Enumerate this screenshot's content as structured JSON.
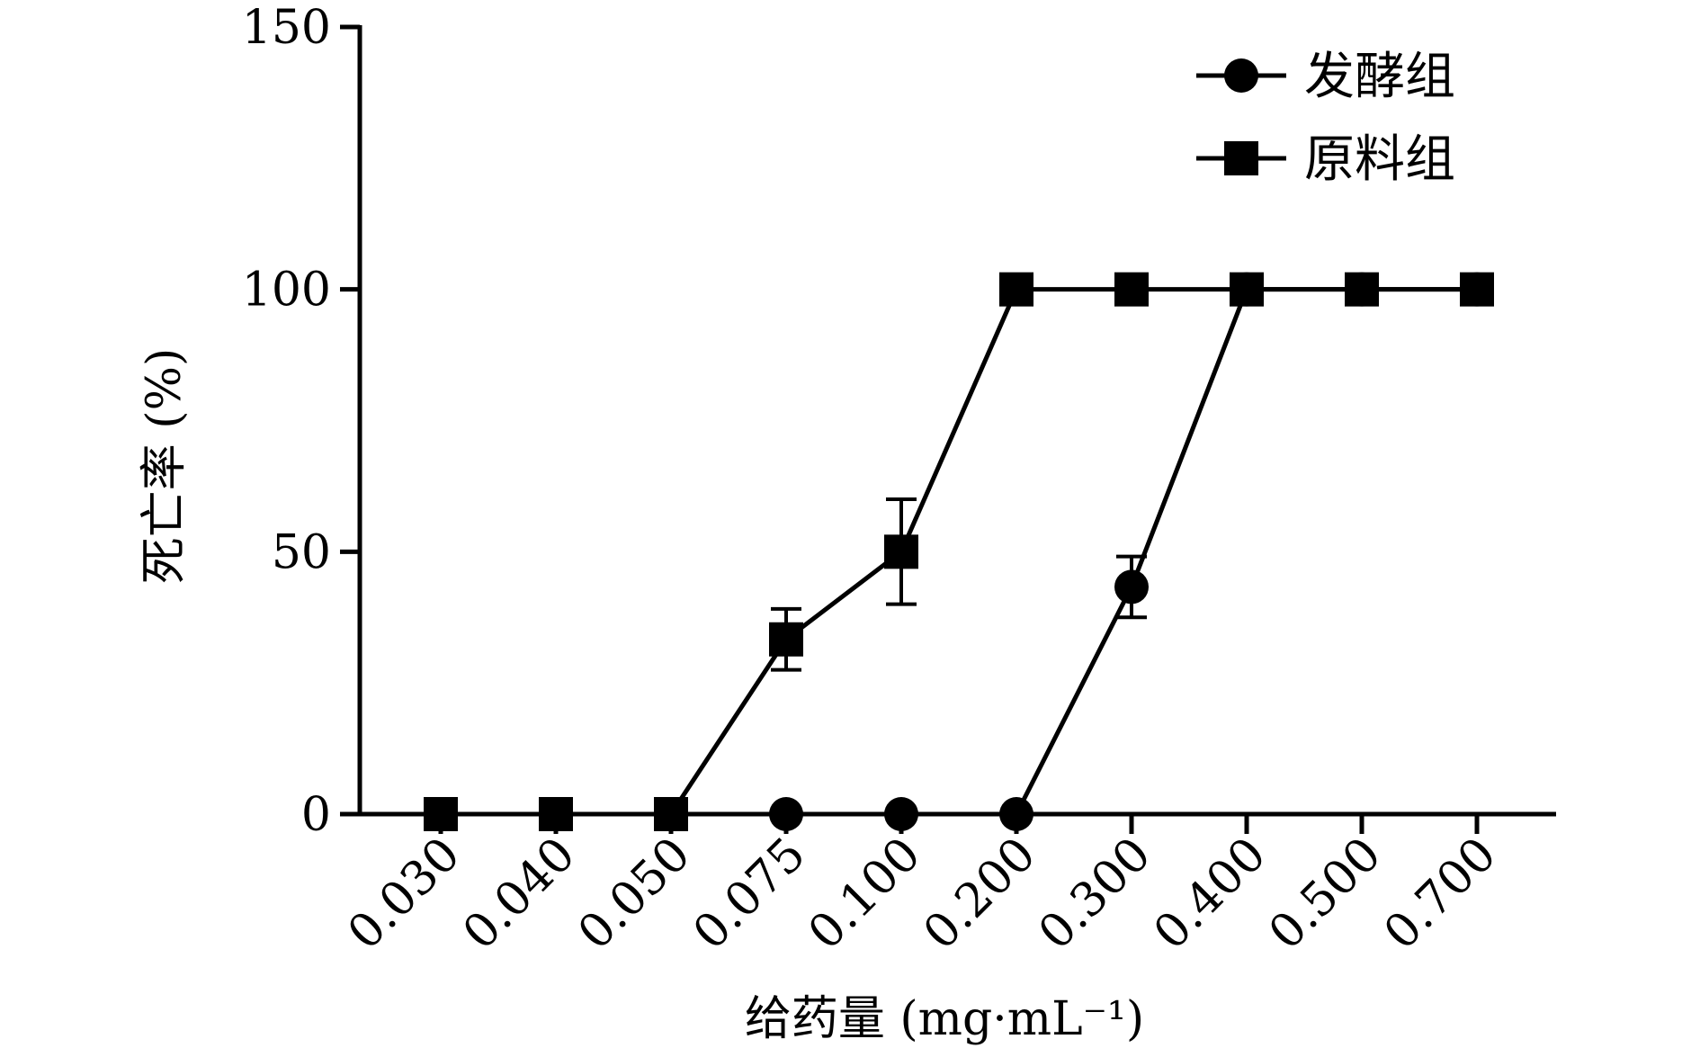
{
  "chart_data": {
    "type": "line",
    "xlabel": "给药量 (mg·mL⁻¹)",
    "ylabel": "死亡率 (%)",
    "categories": [
      "0.030",
      "0.040",
      "0.050",
      "0.075",
      "0.100",
      "0.200",
      "0.300",
      "0.400",
      "0.500",
      "0.700"
    ],
    "ylim": [
      0,
      150
    ],
    "yticks": [
      "0",
      "50",
      "100",
      "150"
    ],
    "grid": false,
    "legend": "top-right",
    "series": [
      {
        "name": "发酵组",
        "marker": "circle",
        "values": [
          0,
          0,
          0,
          0,
          0,
          0,
          43.3,
          100,
          100,
          100
        ],
        "errors": [
          0,
          0,
          0,
          0,
          0,
          0,
          5.8,
          0,
          0,
          0
        ]
      },
      {
        "name": "原料组",
        "marker": "square",
        "values": [
          0,
          0,
          0,
          33.3,
          50,
          100,
          100,
          100,
          100,
          100
        ],
        "errors": [
          0,
          0,
          0,
          5.8,
          10,
          0,
          0,
          0,
          0,
          0
        ]
      }
    ]
  }
}
